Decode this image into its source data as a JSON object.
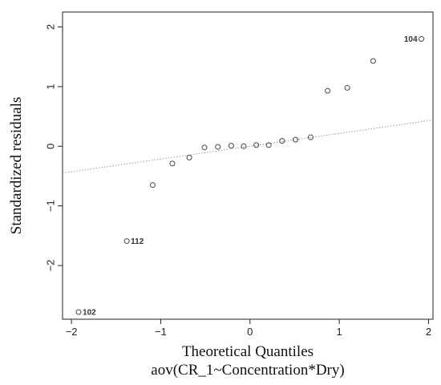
{
  "chart_data": {
    "type": "scatter",
    "title": "",
    "xlabel": "Theoretical Quantiles",
    "xlabel2": "aov(CR_1~Concentration*Dry)",
    "ylabel": "Standardized residuals",
    "xlim": [
      -2.1,
      2.05
    ],
    "ylim": [
      -2.9,
      2.25
    ],
    "xticks": [
      -2,
      -1,
      0,
      1,
      2
    ],
    "yticks": [
      -2,
      -1,
      0,
      1,
      2
    ],
    "xtick_labels": [
      "−2",
      "−1",
      "0",
      "1",
      "2"
    ],
    "ytick_labels": [
      "−2",
      "−1",
      "0",
      "1",
      "2"
    ],
    "grid": false,
    "points": [
      {
        "x": -1.92,
        "y": -2.78,
        "label": "102"
      },
      {
        "x": -1.38,
        "y": -1.59,
        "label": "112"
      },
      {
        "x": -1.09,
        "y": -0.65,
        "label": ""
      },
      {
        "x": -0.87,
        "y": -0.29,
        "label": ""
      },
      {
        "x": -0.68,
        "y": -0.19,
        "label": ""
      },
      {
        "x": -0.51,
        "y": -0.02,
        "label": ""
      },
      {
        "x": -0.36,
        "y": -0.01,
        "label": ""
      },
      {
        "x": -0.21,
        "y": 0.01,
        "label": ""
      },
      {
        "x": -0.07,
        "y": 0.0,
        "label": ""
      },
      {
        "x": 0.07,
        "y": 0.02,
        "label": ""
      },
      {
        "x": 0.21,
        "y": 0.02,
        "label": ""
      },
      {
        "x": 0.36,
        "y": 0.09,
        "label": ""
      },
      {
        "x": 0.51,
        "y": 0.11,
        "label": ""
      },
      {
        "x": 0.68,
        "y": 0.15,
        "label": ""
      },
      {
        "x": 0.87,
        "y": 0.93,
        "label": ""
      },
      {
        "x": 1.09,
        "y": 0.98,
        "label": ""
      },
      {
        "x": 1.38,
        "y": 1.43,
        "label": ""
      },
      {
        "x": 1.92,
        "y": 1.8,
        "label": "104"
      }
    ],
    "reference_line": {
      "x1": -2.1,
      "y1": -0.45,
      "x2": 2.05,
      "y2": 0.44,
      "style": "dotted"
    }
  }
}
